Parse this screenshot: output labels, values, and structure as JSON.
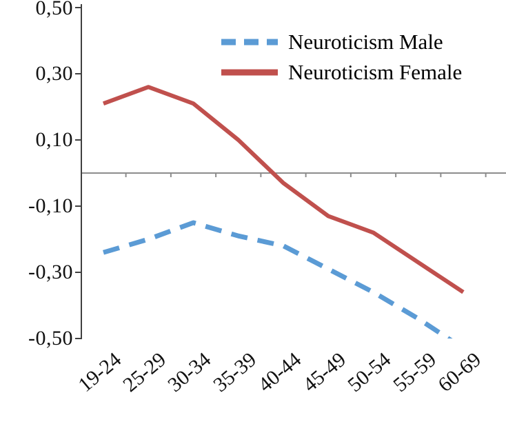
{
  "chart_data": {
    "type": "line",
    "title": "",
    "xlabel": "",
    "ylabel": "",
    "categories": [
      "19-24",
      "25-29",
      "30-34",
      "35-39",
      "40-44",
      "45-49",
      "50-54",
      "55-59",
      "60-69"
    ],
    "series": [
      {
        "name": "Neuroticism Male",
        "color": "#5b9bd5",
        "style": "dashed",
        "values": [
          -0.24,
          -0.2,
          -0.15,
          -0.19,
          -0.22,
          -0.29,
          -0.36,
          -0.44,
          -0.53
        ]
      },
      {
        "name": "Neuroticism Female",
        "color": "#c0504d",
        "style": "solid",
        "values": [
          0.21,
          0.26,
          0.21,
          0.1,
          -0.03,
          -0.13,
          -0.18,
          -0.27,
          -0.36
        ]
      }
    ],
    "ylim": [
      -0.5,
      0.5
    ],
    "ytick_labels": [
      "0,50",
      "0,30",
      "0,10",
      "-0,10",
      "-0,30",
      "-0,50"
    ],
    "ytick_values": [
      0.5,
      0.3,
      0.1,
      -0.1,
      -0.3,
      -0.5
    ],
    "grid": false,
    "legend_position": "top-right",
    "axis_color": "#404040",
    "zero_line_color": "#8c8c8c",
    "background": "#ffffff"
  }
}
